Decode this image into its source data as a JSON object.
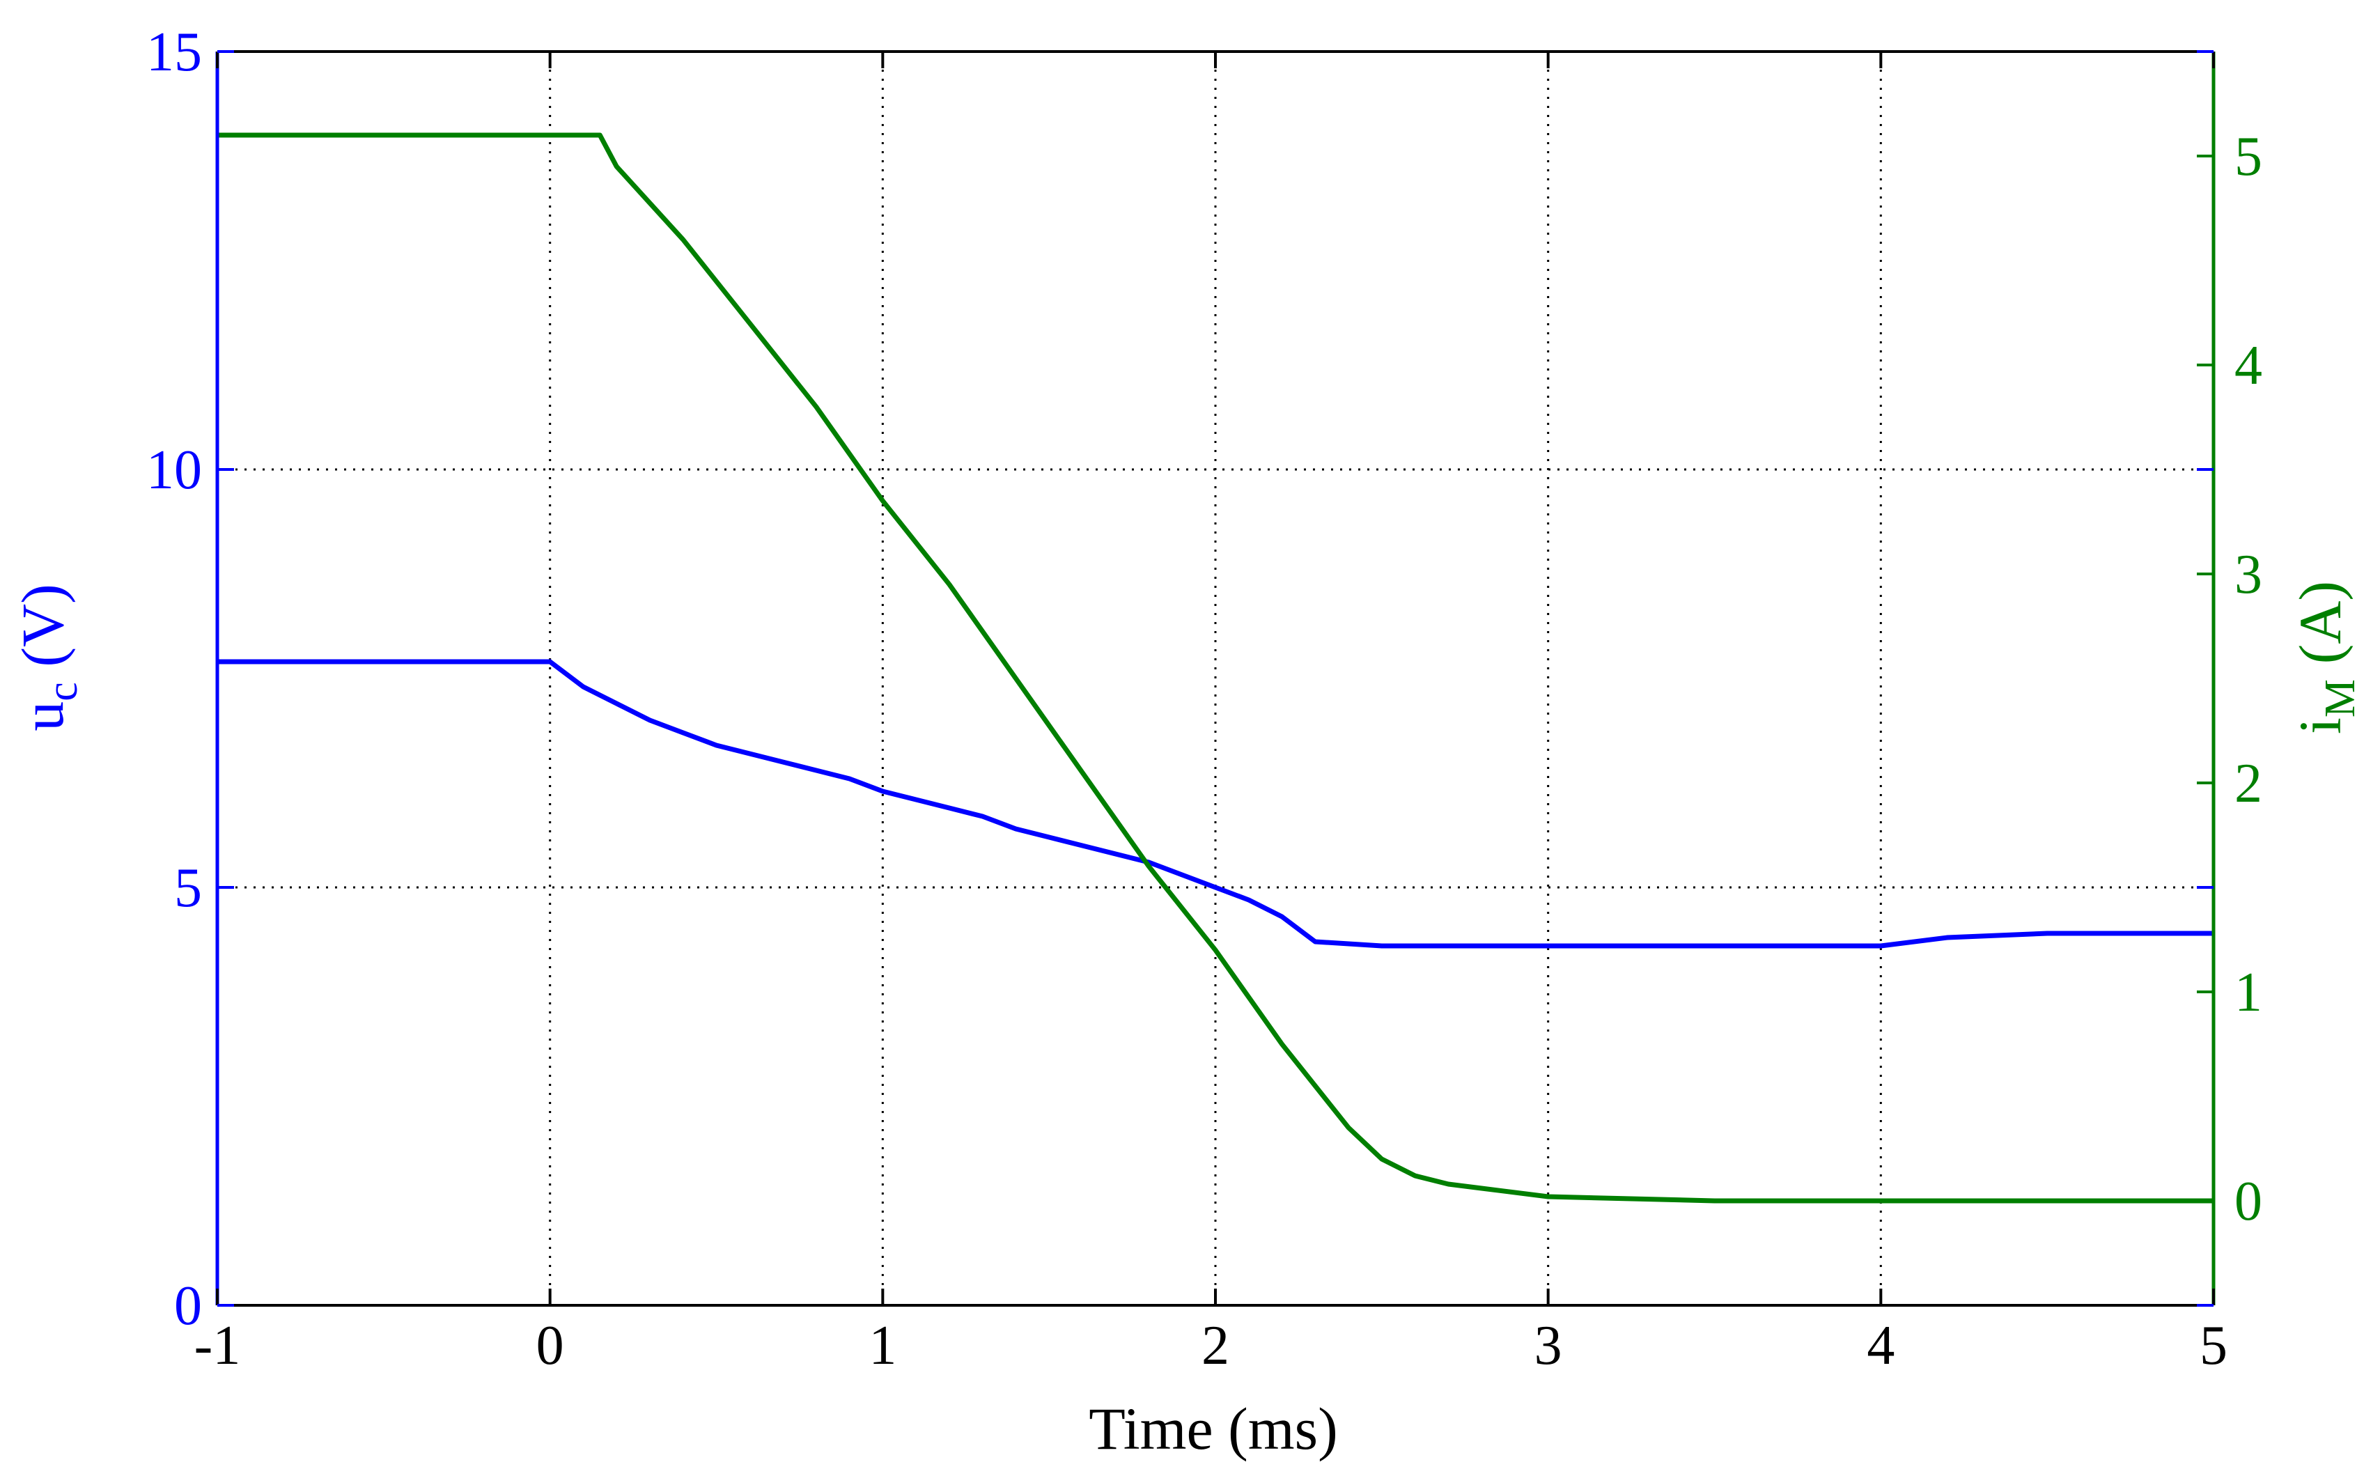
{
  "chart_data": {
    "type": "line",
    "title": "",
    "xlabel": "Time (ms)",
    "ylabel": {
      "base": "u",
      "sub": "c",
      "unit": " (V)"
    },
    "y2label": {
      "base": "i",
      "sub": "M",
      "unit": " (A)"
    },
    "xlim": [
      -1,
      5
    ],
    "ylim": [
      0,
      15
    ],
    "y2lim": [
      -0.5,
      5.5
    ],
    "xticks": [
      "-1",
      "0",
      "1",
      "2",
      "3",
      "4",
      "5"
    ],
    "yticks": [
      "0",
      "5",
      "10",
      "15"
    ],
    "y2ticks": [
      "0",
      "1",
      "2",
      "3",
      "4",
      "5"
    ],
    "grid": true,
    "colors": {
      "left_axis": "#0000ff",
      "right_axis": "#007f00",
      "grid": "#000000"
    },
    "series": [
      {
        "axis": "left",
        "color": "#0000ff",
        "x": [
          -1.0,
          -0.8,
          -0.6,
          -0.4,
          -0.2,
          0.0,
          0.1,
          0.2,
          0.3,
          0.4,
          0.5,
          0.6,
          0.7,
          0.8,
          0.9,
          1.0,
          1.1,
          1.2,
          1.3,
          1.4,
          1.5,
          1.6,
          1.7,
          1.8,
          1.9,
          2.0,
          2.1,
          2.2,
          2.3,
          2.5,
          3.0,
          3.5,
          4.0,
          4.2,
          4.5,
          5.0
        ],
        "y": [
          7.7,
          7.7,
          7.7,
          7.7,
          7.7,
          7.7,
          7.4,
          7.2,
          7.0,
          6.85,
          6.7,
          6.6,
          6.5,
          6.4,
          6.3,
          6.15,
          6.05,
          5.95,
          5.85,
          5.7,
          5.6,
          5.5,
          5.4,
          5.3,
          5.15,
          5.0,
          4.85,
          4.65,
          4.35,
          4.3,
          4.3,
          4.3,
          4.3,
          4.4,
          4.45,
          4.45
        ]
      },
      {
        "axis": "right",
        "color": "#007f00",
        "x": [
          -1.0,
          0.0,
          0.15,
          0.2,
          0.4,
          0.6,
          0.8,
          1.0,
          1.2,
          1.4,
          1.6,
          1.8,
          2.0,
          2.2,
          2.4,
          2.5,
          2.6,
          2.7,
          2.8,
          3.0,
          3.5,
          4.0,
          4.5,
          5.0
        ],
        "y": [
          5.1,
          5.1,
          5.1,
          4.95,
          4.6,
          4.2,
          3.8,
          3.35,
          2.95,
          2.5,
          2.05,
          1.6,
          1.2,
          0.75,
          0.35,
          0.2,
          0.12,
          0.08,
          0.06,
          0.02,
          0.0,
          0.0,
          0.0,
          0.0
        ]
      }
    ]
  }
}
